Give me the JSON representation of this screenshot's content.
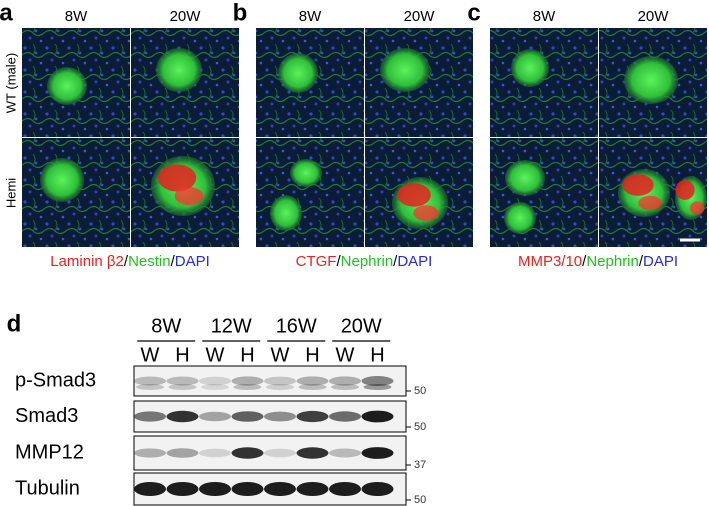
{
  "panels": [
    {
      "label": "a",
      "columns": [
        "8W",
        "20W"
      ],
      "caption": [
        {
          "text": "Laminin β2",
          "color": "#e8231f"
        },
        {
          "text": "/",
          "color": "#000000"
        },
        {
          "text": "Nestin",
          "color": "#22c022"
        },
        {
          "text": "/",
          "color": "#000000"
        },
        {
          "text": "DAPI",
          "color": "#2a2ad8"
        }
      ]
    },
    {
      "label": "b",
      "columns": [
        "8W",
        "20W"
      ],
      "caption": [
        {
          "text": "CTGF",
          "color": "#e8231f"
        },
        {
          "text": "/",
          "color": "#000000"
        },
        {
          "text": "Nephrin",
          "color": "#22c022"
        },
        {
          "text": "/",
          "color": "#000000"
        },
        {
          "text": "DAPI",
          "color": "#2a2ad8"
        }
      ]
    },
    {
      "label": "c",
      "columns": [
        "8W",
        "20W"
      ],
      "caption": [
        {
          "text": "MMP3/10",
          "color": "#e8231f"
        },
        {
          "text": "/",
          "color": "#000000"
        },
        {
          "text": "Nephrin",
          "color": "#22c022"
        },
        {
          "text": "/",
          "color": "#000000"
        },
        {
          "text": "DAPI",
          "color": "#2a2ad8"
        }
      ]
    }
  ],
  "row_labels": [
    "WT (male)",
    "Hemi"
  ],
  "blot": {
    "label": "d",
    "groups": [
      "8W",
      "12W",
      "16W",
      "20W"
    ],
    "lanes": [
      "W",
      "H",
      "W",
      "H",
      "W",
      "H",
      "W",
      "H"
    ],
    "rows": [
      {
        "name": "p-Smad3",
        "marker": "50"
      },
      {
        "name": "Smad3",
        "marker": "50"
      },
      {
        "name": "MMP12",
        "marker": "37"
      },
      {
        "name": "Tubulin",
        "marker": "50"
      }
    ]
  }
}
